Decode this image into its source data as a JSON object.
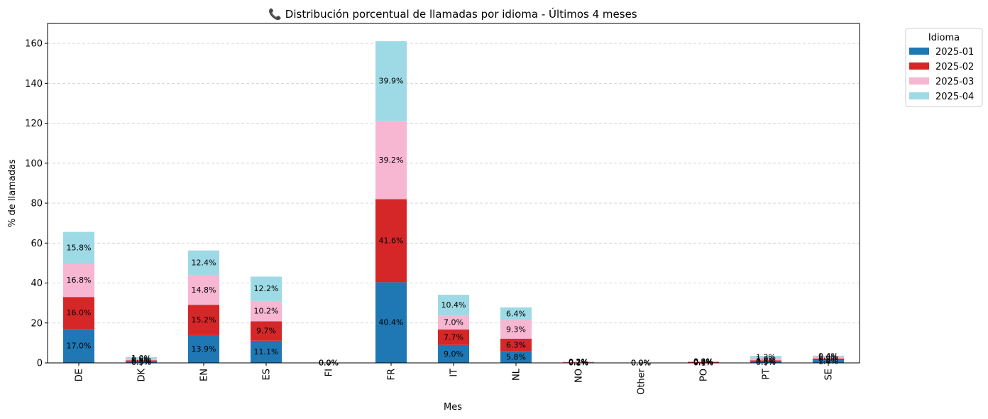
{
  "chart_data": {
    "type": "bar",
    "stacked": true,
    "title": "📞 Distribución porcentual de llamadas por idioma - Últimos 4 meses",
    "xlabel": "Mes",
    "ylabel": "% de llamadas",
    "ylim": [
      0,
      170
    ],
    "yticks": [
      0,
      20,
      40,
      60,
      80,
      100,
      120,
      140,
      160
    ],
    "grid": "y-dashed",
    "categories": [
      "DE",
      "DK",
      "EN",
      "ES",
      "FI",
      "FR",
      "IT",
      "NL",
      "NO",
      "Other",
      "PO",
      "PT",
      "SE"
    ],
    "legend_title": "Idioma",
    "legend_placement": "outside-top-right",
    "series": [
      {
        "name": "2025-01",
        "color": "#1f77b4",
        "values": [
          17.0,
          0.5,
          13.9,
          11.1,
          0.0,
          40.4,
          9.0,
          5.8,
          0.1,
          0.0,
          0.1,
          0.5,
          1.4
        ],
        "labels": [
          "17.0%",
          "0.5%",
          "13.9%",
          "11.1%",
          "0.0%",
          "40.4%",
          "9.0%",
          "5.8%",
          "0.1%",
          "0.0%",
          "0.1%",
          "0.5%",
          "1.4%"
        ]
      },
      {
        "name": "2025-02",
        "color": "#d62728",
        "values": [
          16.0,
          0.8,
          15.2,
          9.7,
          0.0,
          41.6,
          7.7,
          6.3,
          0.2,
          0.0,
          0.4,
          0.8,
          0.8
        ],
        "labels": [
          "16.0%",
          "0.8%",
          "15.2%",
          "9.7%",
          "0.0%",
          "41.6%",
          "7.7%",
          "6.3%",
          "0.2%",
          "0.0%",
          "0.4%",
          "0.8%",
          "0.8%"
        ]
      },
      {
        "name": "2025-03",
        "color": "#f7b6d2",
        "values": [
          16.8,
          0.6,
          14.8,
          10.2,
          0.0,
          39.2,
          7.0,
          9.3,
          0.2,
          0.0,
          0.2,
          1.0,
          1.0
        ],
        "labels": [
          "16.8%",
          "0.6%",
          "14.8%",
          "10.2%",
          "0.0%",
          "39.2%",
          "7.0%",
          "9.3%",
          "0.2%",
          "0.0%",
          "0.2%",
          "1.0%",
          "1.0%"
        ]
      },
      {
        "name": "2025-04",
        "color": "#9edae5",
        "values": [
          15.8,
          1.0,
          12.4,
          12.2,
          0.0,
          39.9,
          10.4,
          6.4,
          0.2,
          0.0,
          0.0,
          1.2,
          0.4
        ],
        "labels": [
          "15.8%",
          "1.0%",
          "12.4%",
          "12.2%",
          "0.0%",
          "39.9%",
          "10.4%",
          "6.4%",
          "0.2%",
          "0.0%",
          "0.0%",
          "1.2%",
          "0.4%"
        ]
      }
    ]
  }
}
